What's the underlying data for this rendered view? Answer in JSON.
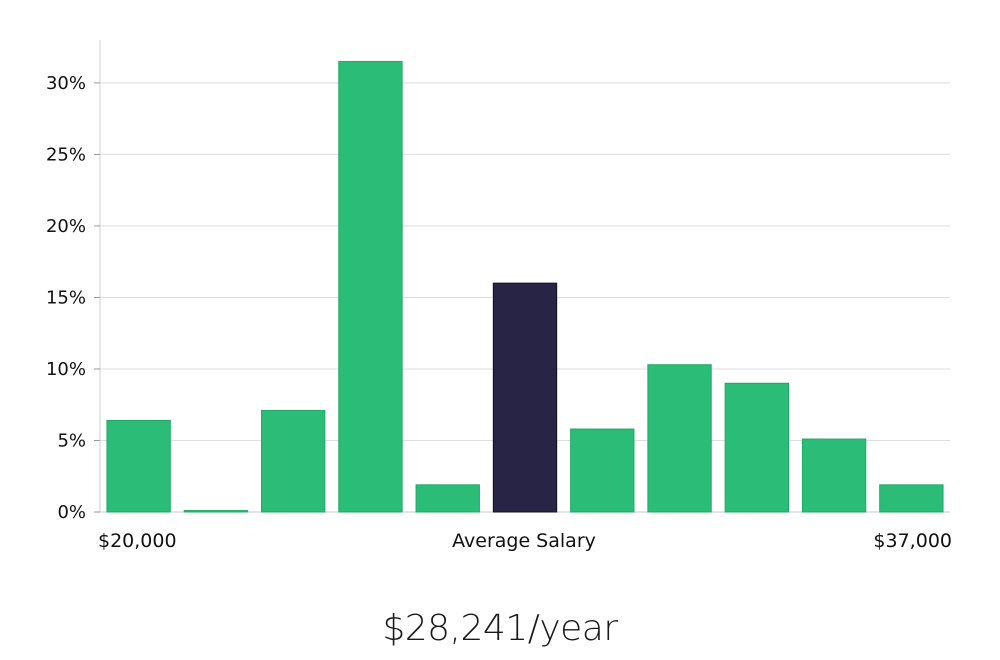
{
  "chart_data": {
    "type": "bar",
    "x_min_label": "$20,000",
    "x_max_label": "$37,000",
    "xlabel": "Average Salary",
    "values": [
      6.4,
      0.1,
      7.1,
      31.5,
      1.9,
      16.0,
      5.8,
      10.3,
      9.0,
      5.1,
      1.9
    ],
    "highlight_index": 5,
    "ylim": [
      0,
      33
    ],
    "y_ticks": [
      0,
      5,
      10,
      15,
      20,
      25,
      30
    ],
    "y_tick_labels": [
      "0%",
      "5%",
      "10%",
      "15%",
      "20%",
      "25%",
      "30%"
    ],
    "grid": true,
    "colors": {
      "bar": "#2bbd77",
      "highlight": "#272445",
      "grid": "#dedede",
      "axis": "#cccccc"
    }
  },
  "summary": {
    "salary_text": "$28,241/year"
  }
}
